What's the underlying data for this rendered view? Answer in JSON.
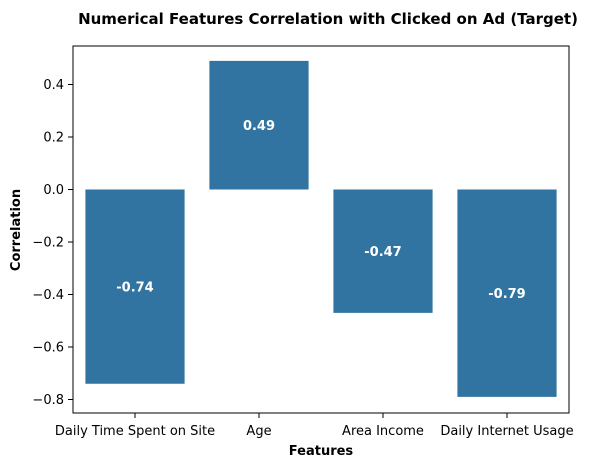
{
  "chart_data": {
    "type": "bar",
    "title": "Numerical Features Correlation with Clicked on Ad (Target)",
    "xlabel": "Features",
    "ylabel": "Correlation",
    "categories": [
      "Daily Time Spent on Site",
      "Age",
      "Area Income",
      "Daily Internet Usage"
    ],
    "values": [
      -0.74,
      0.49,
      -0.47,
      -0.79
    ],
    "data_labels": [
      "-0.74",
      "0.49",
      "-0.47",
      "-0.79"
    ],
    "ylim": [
      -0.85,
      0.53
    ],
    "yticks": [
      -0.8,
      -0.6,
      -0.4,
      -0.2,
      0.0,
      0.2,
      0.4
    ],
    "ytick_labels": [
      "−0.8",
      "−0.6",
      "−0.4",
      "−0.2",
      "0.0",
      "0.2",
      "0.4"
    ],
    "grid": false,
    "legend": false,
    "bar_color": "#3274a1"
  }
}
